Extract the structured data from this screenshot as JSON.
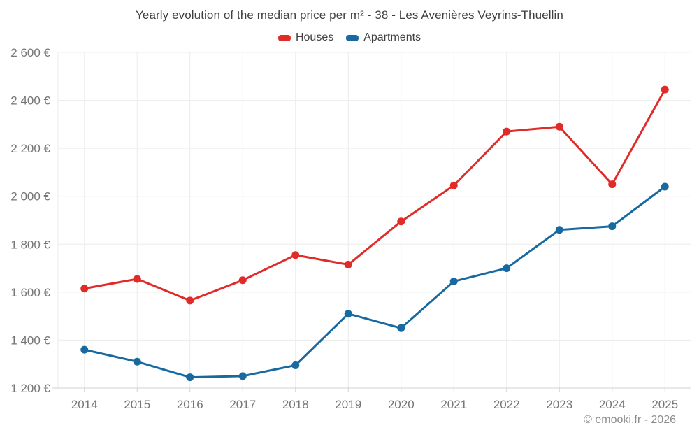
{
  "chart_data": {
    "type": "line",
    "title": "Yearly evolution of the median price per m² - 38 - Les Avenières Veyrins-Thuellin",
    "categories": [
      "2014",
      "2015",
      "2016",
      "2017",
      "2018",
      "2019",
      "2020",
      "2021",
      "2022",
      "2023",
      "2024",
      "2025"
    ],
    "series": [
      {
        "name": "Houses",
        "color": "#e02b28",
        "values": [
          1615,
          1655,
          1565,
          1650,
          1755,
          1715,
          1895,
          2045,
          2270,
          2290,
          2050,
          2445
        ]
      },
      {
        "name": "Apartments",
        "color": "#17699f",
        "values": [
          1360,
          1310,
          1245,
          1250,
          1295,
          1510,
          1450,
          1645,
          1700,
          1860,
          1875,
          2040
        ]
      }
    ],
    "ylim": [
      1200,
      2600
    ],
    "ytick_step": 200,
    "ytick_labels": [
      "2 600 €",
      "2 400 €",
      "2 200 €",
      "2 000 €",
      "1 800 €",
      "1 600 €",
      "1 400 €",
      "1 200 €"
    ],
    "currency_suffix": " €",
    "grid": true,
    "legend_position": "top",
    "marker": "circle"
  },
  "footer": {
    "text": "© emooki.fr - 2026"
  },
  "style": {
    "title_color": "#3f3f3f",
    "axis_label_color": "#757575",
    "gridline_color": "#ececec",
    "axis_line_color": "#d0d0d0",
    "background": "#ffffff"
  }
}
